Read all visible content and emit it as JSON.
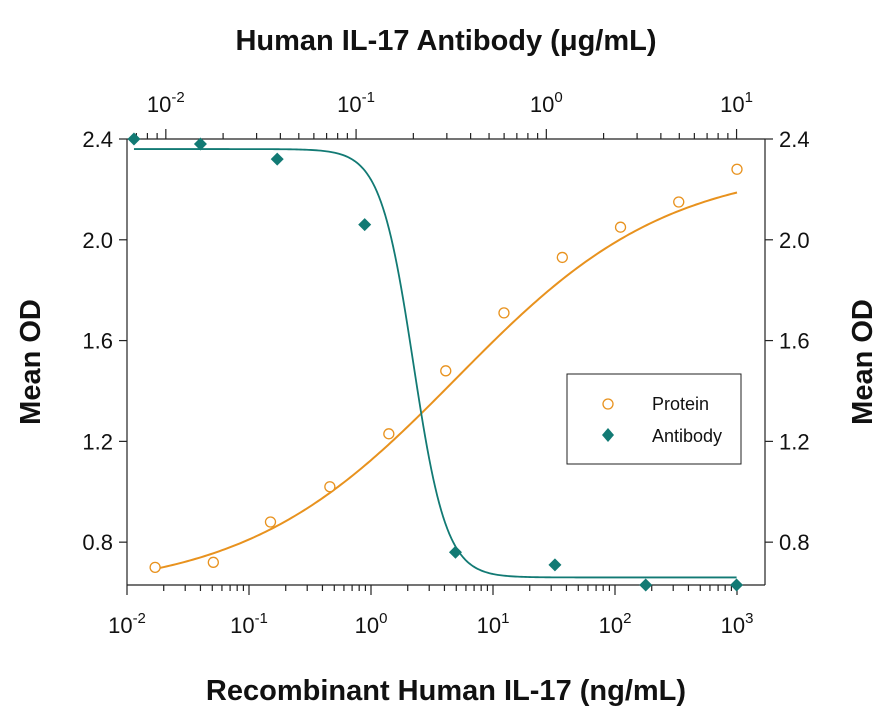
{
  "chart_data": {
    "type": "scatter",
    "title_top": "Human IL-17 Antibody (μg/mL)",
    "xlabel": "Recombinant Human IL-17 (ng/mL)",
    "ylabel_left": "Mean OD",
    "ylabel_right": "Mean OD",
    "x_scale": "log",
    "xlim": [
      0.01,
      1000
    ],
    "x_top_scale": "log",
    "x_top_lim": [
      0.00625,
      12.5
    ],
    "ylim": [
      0.63,
      2.4
    ],
    "y_ticks": [
      0.8,
      1.2,
      1.6,
      2.0,
      2.4
    ],
    "y_tick_labels": [
      "0.8",
      "1.2",
      "1.6",
      "2.0",
      "2.4"
    ],
    "x_bottom_ticks": [
      {
        "value": 0.01,
        "base": "10",
        "exp": "-2"
      },
      {
        "value": 0.1,
        "base": "10",
        "exp": "-1"
      },
      {
        "value": 1,
        "base": "10",
        "exp": "0"
      },
      {
        "value": 10,
        "base": "10",
        "exp": "1"
      },
      {
        "value": 100,
        "base": "10",
        "exp": "2"
      },
      {
        "value": 1000,
        "base": "10",
        "exp": "3"
      }
    ],
    "x_top_ticks": [
      {
        "value": 0.01,
        "base": "10",
        "exp": "-2"
      },
      {
        "value": 0.1,
        "base": "10",
        "exp": "-1"
      },
      {
        "value": 1,
        "base": "10",
        "exp": "0"
      },
      {
        "value": 10,
        "base": "10",
        "exp": "1"
      }
    ],
    "legend_position": "right",
    "series": [
      {
        "name": "Protein",
        "axis": "bottom",
        "marker": "open-circle",
        "color": "#E8921E",
        "x": [
          0.017,
          0.051,
          0.15,
          0.46,
          1.4,
          4.1,
          12.3,
          37,
          111,
          333,
          1000
        ],
        "y": [
          0.7,
          0.72,
          0.88,
          1.02,
          1.23,
          1.48,
          1.71,
          1.93,
          2.05,
          2.15,
          2.28
        ],
        "fit": {
          "bottom": 0.6,
          "top": 2.3,
          "ec50": 5.0,
          "hill": 0.5
        }
      },
      {
        "name": "Antibody",
        "axis": "top",
        "marker": "filled-diamond",
        "color": "#127A74",
        "x": [
          0.0068,
          0.0152,
          0.0385,
          0.111,
          0.333,
          1.11,
          3.33,
          10.0
        ],
        "y": [
          2.4,
          2.38,
          2.32,
          2.06,
          0.76,
          0.71,
          0.63,
          0.63
        ],
        "fit": {
          "bottom": 0.66,
          "top": 2.36,
          "ic50": 0.2,
          "hill": 5
        }
      }
    ]
  }
}
